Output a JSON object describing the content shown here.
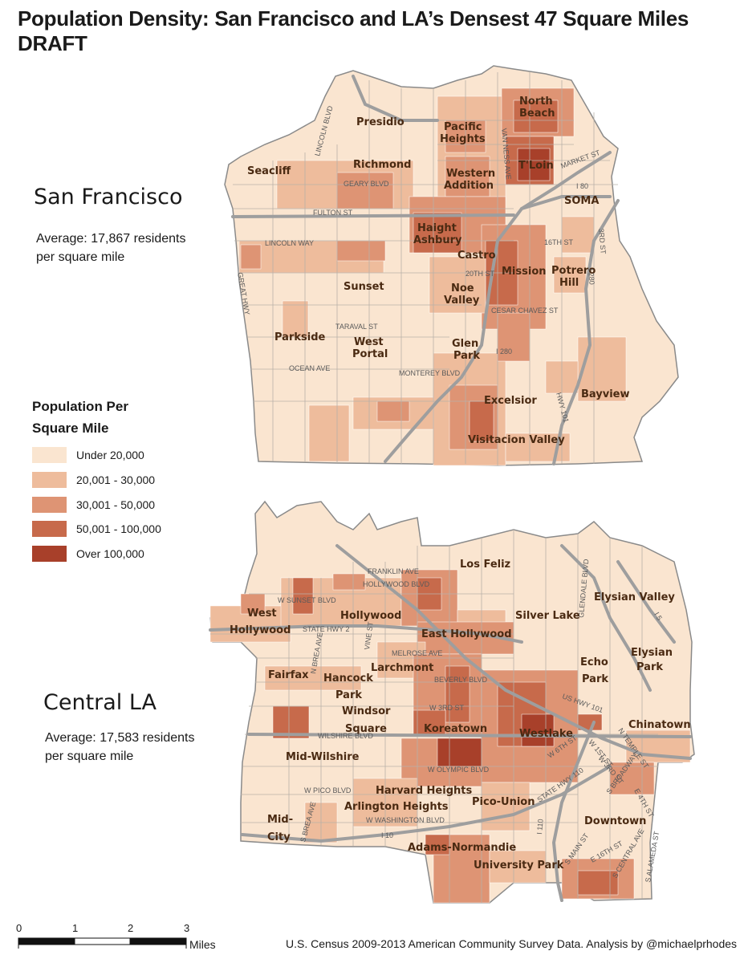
{
  "title_line1": "Population Density: San Francisco and LA’s Densest 47 Square Miles",
  "title_line2": "DRAFT",
  "sf": {
    "name": "San Francisco",
    "average_line1": "Average: 17,867 residents",
    "average_line2": "per square mile",
    "neighborhoods": [
      "North Beach",
      "Presidio",
      "Pacific Heights",
      "Richmond",
      "Seacliff",
      "Western Addition",
      "T'Loin",
      "SOMA",
      "Haight Ashbury",
      "Castro",
      "Mission",
      "Potrero Hill",
      "Sunset",
      "Noe Valley",
      "Parkside",
      "West Portal",
      "Glen Park",
      "Bayview",
      "Excelsior",
      "Visitacion Valley"
    ],
    "streets": [
      "LINCOLN BLVD",
      "GEARY BLVD",
      "FULTON ST",
      "LINCOLN WAY",
      "GREAT HWY",
      "VAN NESS AVE",
      "MARKET ST",
      "I 80",
      "16TH ST",
      "20TH ST",
      "3RD ST",
      "I 280",
      "CESAR CHAVEZ ST",
      "TARAVAL ST",
      "OCEAN AVE",
      "MONTEREY BLVD",
      "HWY 101"
    ]
  },
  "la": {
    "name": "Central LA",
    "average_line1": "Average: 17,583 residents",
    "average_line2": "per square mile",
    "neighborhoods": [
      "Los Feliz",
      "Elysian Valley",
      "West Hollywood",
      "Hollywood",
      "Silver Lake",
      "East Hollywood",
      "Elysian Park",
      "Fairfax",
      "Hancock Park",
      "Larchmont",
      "Echo Park",
      "Windsor Square",
      "Koreatown",
      "Westlake",
      "Chinatown",
      "Mid-Wilshire",
      "Harvard Heights",
      "Arlington Heights",
      "Pico-Union",
      "Downtown",
      "Mid-City",
      "Adams-Normandie",
      "University Park"
    ],
    "streets": [
      "FRANKLIN AVE",
      "HOLLYWOOD BLVD",
      "W SUNSET BLVD",
      "STATE HWY 2",
      "MELROSE AVE",
      "BEVERLY BLVD",
      "W 3RD ST",
      "WILSHIRE BLVD",
      "W OLYMPIC BLVD",
      "W PICO BLVD",
      "W WASHINGTON BLVD",
      "I 10",
      "S BREA AVE",
      "N BREA AVE",
      "VINE ST",
      "GLENDALE BLVD",
      "US HWY 101",
      "W 6TH ST",
      "STATE HWY 110",
      "S BROADWAY",
      "E 16TH ST",
      "S MAIN ST",
      "S CENTRAL AVE",
      "S ALAMEDA ST",
      "N TEMPLE ST",
      "W 1ST ST",
      "W 3RD ST",
      "I 5",
      "E 4TH ST",
      "I 110"
    ]
  },
  "legend": {
    "title_line1": "Population Per",
    "title_line2": "Square Mile",
    "classes": [
      {
        "label": "Under 20,000",
        "color": "#fae5d0"
      },
      {
        "label": "20,001 - 30,000",
        "color": "#eebc9c"
      },
      {
        "label": "30,001 - 50,000",
        "color": "#de9474"
      },
      {
        "label": "50,001 - 100,000",
        "color": "#c76a4b"
      },
      {
        "label": "Over 100,000",
        "color": "#a8402a"
      }
    ]
  },
  "scale_bar": {
    "ticks": [
      "0",
      "1",
      "2",
      "3"
    ],
    "unit": "Miles"
  },
  "credit": "U.S. Census 2009-2013 American Community Survey Data. Analysis by @michaelprhodes"
}
